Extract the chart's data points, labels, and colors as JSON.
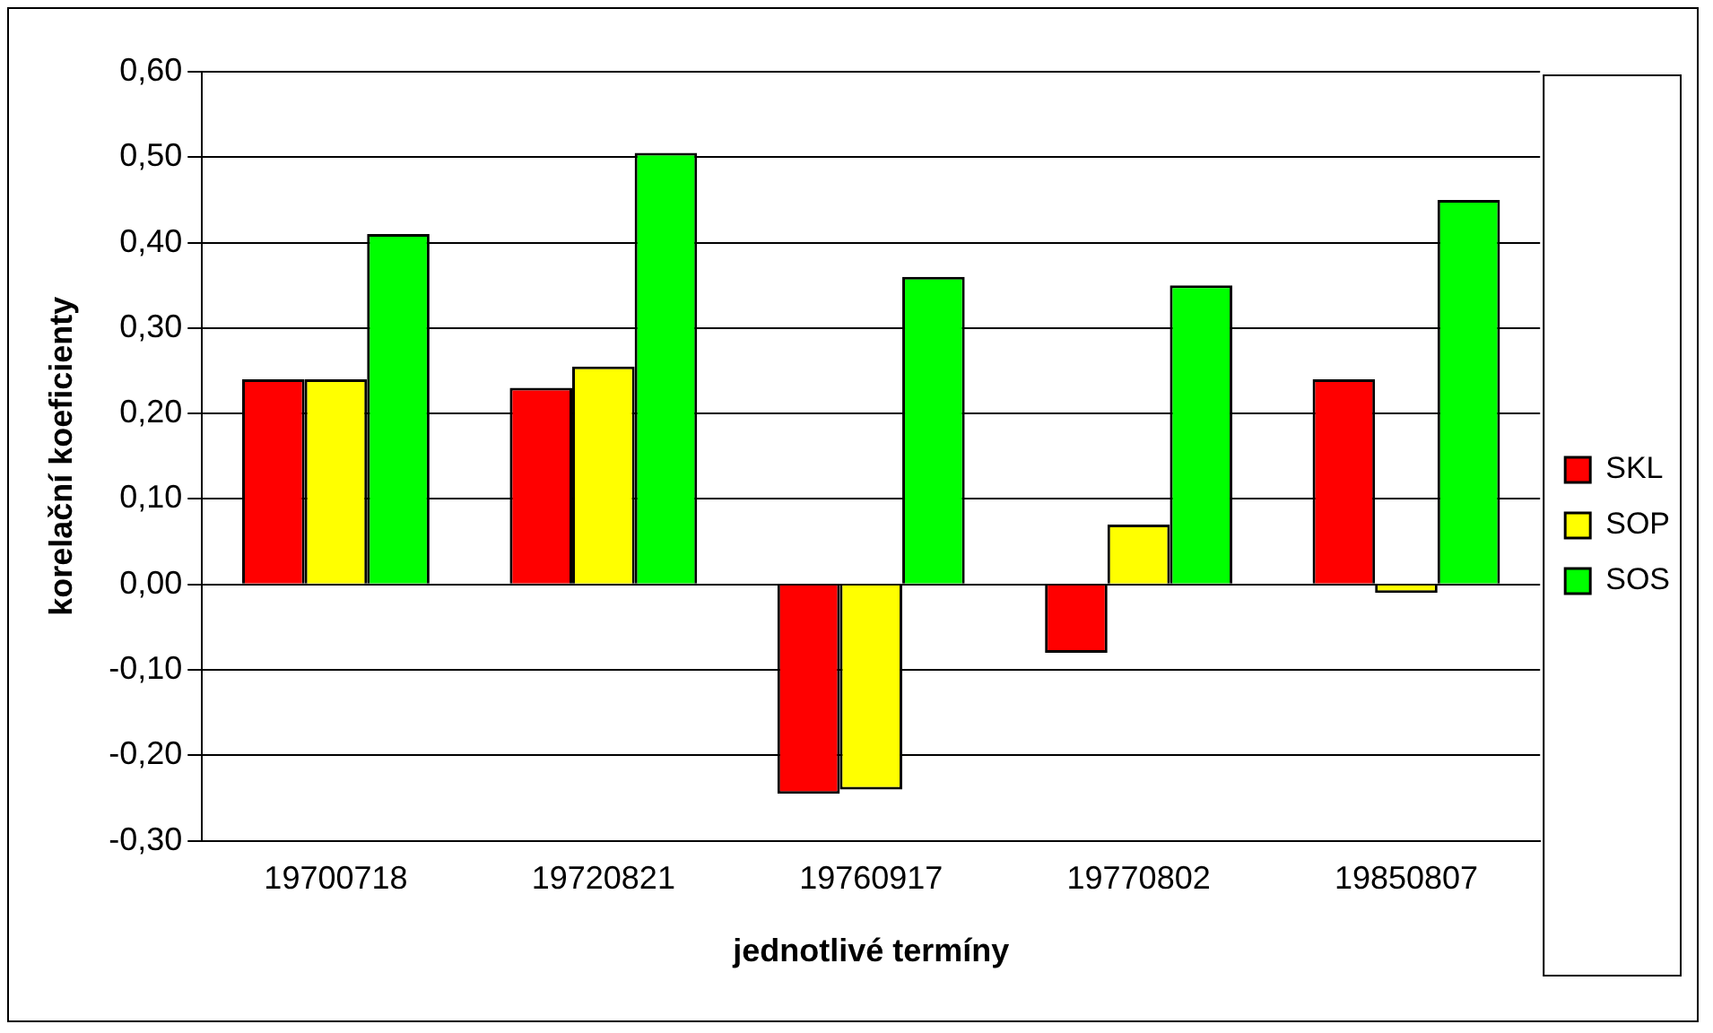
{
  "chart_data": {
    "type": "bar",
    "xlabel": "jednotlivé termíny",
    "ylabel": "korelační koeficienty",
    "categories": [
      "19700718",
      "19720821",
      "19760917",
      "19770802",
      "19850807"
    ],
    "series": [
      {
        "name": "SKL",
        "color": "#ff0000",
        "values": [
          0.24,
          0.23,
          -0.245,
          -0.08,
          0.24
        ]
      },
      {
        "name": "SOP",
        "color": "#ffff00",
        "values": [
          0.24,
          0.255,
          -0.24,
          0.07,
          -0.01
        ]
      },
      {
        "name": "SOS",
        "color": "#00ff00",
        "values": [
          0.41,
          0.505,
          0.36,
          0.35,
          0.45
        ]
      }
    ],
    "ylim": [
      -0.3,
      0.6
    ],
    "yticks": [
      {
        "value": -0.3,
        "label": "-0,30"
      },
      {
        "value": -0.2,
        "label": "-0,20"
      },
      {
        "value": -0.1,
        "label": "-0,10"
      },
      {
        "value": 0,
        "label": "0,00"
      },
      {
        "value": 0.1,
        "label": "0,10"
      },
      {
        "value": 0.2,
        "label": "0,20"
      },
      {
        "value": 0.3,
        "label": "0,30"
      },
      {
        "value": 0.4,
        "label": "0,40"
      },
      {
        "value": 0.5,
        "label": "0,50"
      },
      {
        "value": 0.6,
        "label": "0,60"
      }
    ],
    "grid": "y",
    "legend": "right"
  }
}
